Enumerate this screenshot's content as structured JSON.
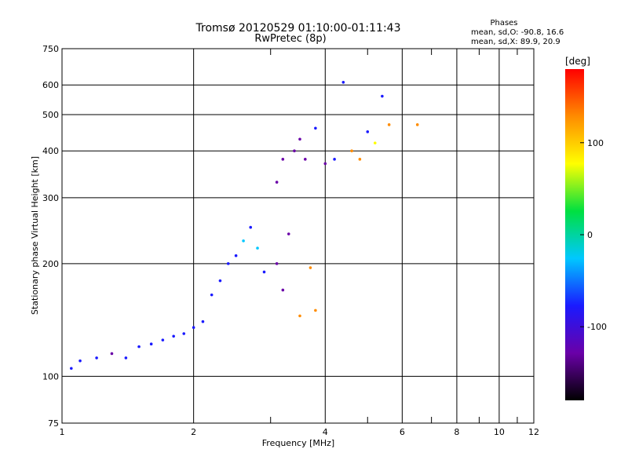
{
  "chart_data": {
    "type": "scatter",
    "title": "Tromsø 20120529 01:10:00-01:11:43",
    "subtitle": "RwPretec (8p)",
    "xlabel": "Frequency [MHz]",
    "ylabel": "Stationary phase Virtual Height [km]",
    "x_scale": "log",
    "y_scale": "log",
    "xlim": [
      1,
      12
    ],
    "ylim": [
      75,
      750
    ],
    "x_ticks": [
      1,
      2,
      4,
      6,
      8,
      10,
      12
    ],
    "x_minor_ticks": [
      3,
      5,
      7,
      9,
      11
    ],
    "y_ticks": [
      75,
      100,
      200,
      300,
      400,
      500,
      600,
      750
    ],
    "grid": true,
    "stats_header": "Phases",
    "stats": [
      "mean, sd,O: -90.8, 16.6",
      "mean, sd,X:  89.9, 20.9"
    ],
    "colorbar": {
      "label": "[deg]",
      "range": [
        -180,
        180
      ],
      "ticks": [
        -100,
        0,
        100
      ],
      "colors": [
        "#000000",
        "#6a00a8",
        "#1a1aff",
        "#00c8ff",
        "#00e040",
        "#ffff00",
        "#ff8c00",
        "#ff0000"
      ]
    },
    "points": [
      {
        "x": 1.05,
        "y": 105,
        "phase": -100
      },
      {
        "x": 1.1,
        "y": 110,
        "phase": -95
      },
      {
        "x": 1.2,
        "y": 112,
        "phase": -100
      },
      {
        "x": 1.3,
        "y": 115,
        "phase": -105
      },
      {
        "x": 1.4,
        "y": 112,
        "phase": -95
      },
      {
        "x": 1.5,
        "y": 120,
        "phase": -100
      },
      {
        "x": 1.6,
        "y": 122,
        "phase": -90
      },
      {
        "x": 1.7,
        "y": 125,
        "phase": -100
      },
      {
        "x": 1.8,
        "y": 128,
        "phase": -95
      },
      {
        "x": 1.9,
        "y": 130,
        "phase": -100
      },
      {
        "x": 2.0,
        "y": 135,
        "phase": -90
      },
      {
        "x": 2.1,
        "y": 140,
        "phase": -95
      },
      {
        "x": 2.2,
        "y": 165,
        "phase": -85
      },
      {
        "x": 2.3,
        "y": 180,
        "phase": -80
      },
      {
        "x": 2.4,
        "y": 200,
        "phase": -70
      },
      {
        "x": 2.5,
        "y": 210,
        "phase": -60
      },
      {
        "x": 2.6,
        "y": 230,
        "phase": -50
      },
      {
        "x": 2.7,
        "y": 250,
        "phase": -75
      },
      {
        "x": 2.8,
        "y": 220,
        "phase": -40
      },
      {
        "x": 2.9,
        "y": 190,
        "phase": -55
      },
      {
        "x": 3.1,
        "y": 200,
        "phase": -140
      },
      {
        "x": 3.2,
        "y": 170,
        "phase": -145
      },
      {
        "x": 3.3,
        "y": 240,
        "phase": -130
      },
      {
        "x": 3.5,
        "y": 145,
        "phase": 120
      },
      {
        "x": 3.7,
        "y": 195,
        "phase": 110
      },
      {
        "x": 3.8,
        "y": 150,
        "phase": 115
      },
      {
        "x": 3.1,
        "y": 330,
        "phase": -135
      },
      {
        "x": 3.2,
        "y": 380,
        "phase": -140
      },
      {
        "x": 3.4,
        "y": 400,
        "phase": -125
      },
      {
        "x": 3.5,
        "y": 430,
        "phase": -110
      },
      {
        "x": 3.6,
        "y": 380,
        "phase": -120
      },
      {
        "x": 3.8,
        "y": 460,
        "phase": -100
      },
      {
        "x": 4.0,
        "y": 370,
        "phase": -105
      },
      {
        "x": 4.2,
        "y": 380,
        "phase": -100
      },
      {
        "x": 4.4,
        "y": 610,
        "phase": -95
      },
      {
        "x": 4.6,
        "y": 400,
        "phase": 105
      },
      {
        "x": 4.8,
        "y": 380,
        "phase": 110
      },
      {
        "x": 5.0,
        "y": 450,
        "phase": -80
      },
      {
        "x": 5.2,
        "y": 420,
        "phase": 100
      },
      {
        "x": 5.4,
        "y": 560,
        "phase": -90
      },
      {
        "x": 5.6,
        "y": 470,
        "phase": 115
      },
      {
        "x": 6.5,
        "y": 470,
        "phase": 110
      }
    ]
  }
}
